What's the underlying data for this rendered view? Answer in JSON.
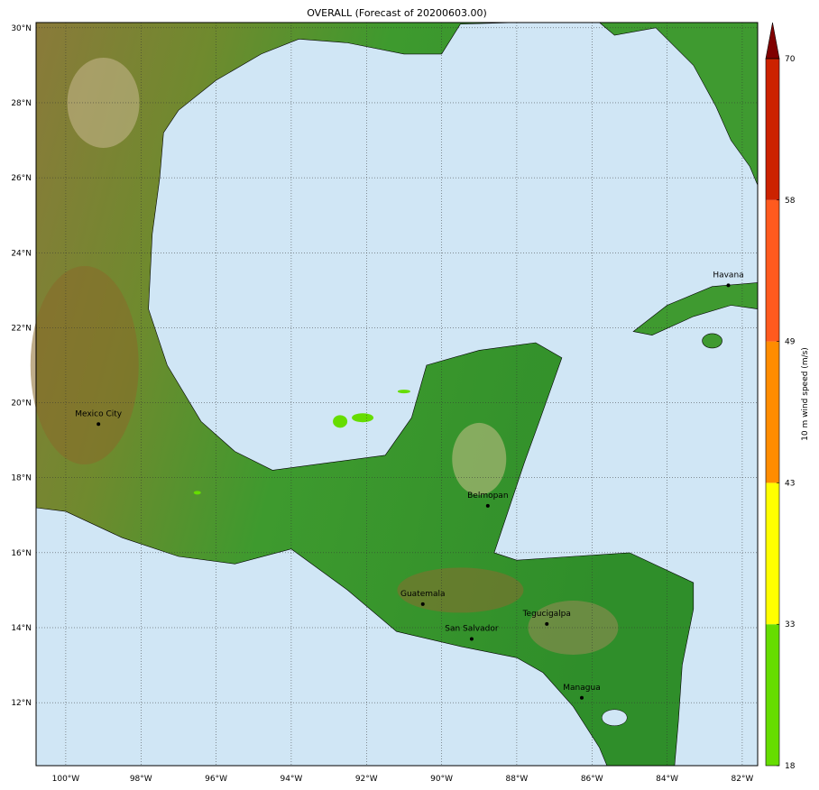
{
  "title": "OVERALL (Forecast of 20200603.00)",
  "map": {
    "extent": {
      "lon": [
        -100.79,
        -81.59
      ],
      "lat": [
        10.32,
        30.14
      ]
    },
    "lon_ticks": [
      {
        "v": -100,
        "label": "100°W"
      },
      {
        "v": -98,
        "label": "98°W"
      },
      {
        "v": -96,
        "label": "96°W"
      },
      {
        "v": -94,
        "label": "94°W"
      },
      {
        "v": -92,
        "label": "92°W"
      },
      {
        "v": -90,
        "label": "90°W"
      },
      {
        "v": -88,
        "label": "88°W"
      },
      {
        "v": -86,
        "label": "86°W"
      },
      {
        "v": -84,
        "label": "84°W"
      },
      {
        "v": -82,
        "label": "82°W"
      }
    ],
    "lat_ticks": [
      {
        "v": 30,
        "label": "30°N"
      },
      {
        "v": 28,
        "label": "28°N"
      },
      {
        "v": 26,
        "label": "26°N"
      },
      {
        "v": 24,
        "label": "24°N"
      },
      {
        "v": 22,
        "label": "22°N"
      },
      {
        "v": 20,
        "label": "20°N"
      },
      {
        "v": 18,
        "label": "18°N"
      },
      {
        "v": 16,
        "label": "16°N"
      },
      {
        "v": 14,
        "label": "14°N"
      },
      {
        "v": 12,
        "label": "12°N"
      }
    ],
    "gridlines": true,
    "water_color": "#d0e6f5",
    "cities": [
      {
        "name": "Mexico City",
        "lon": -99.13,
        "lat": 19.43
      },
      {
        "name": "Havana",
        "lon": -82.37,
        "lat": 23.13
      },
      {
        "name": "Belmopan",
        "lon": -88.77,
        "lat": 17.25
      },
      {
        "name": "Guatemala",
        "lon": -90.5,
        "lat": 14.63
      },
      {
        "name": "San Salvador",
        "lon": -89.2,
        "lat": 13.7
      },
      {
        "name": "Tegucigalpa",
        "lon": -87.2,
        "lat": 14.1
      },
      {
        "name": "Managua",
        "lon": -86.27,
        "lat": 12.13
      }
    ]
  },
  "colorbar": {
    "label": "10 m wind speed (m/s)",
    "levels": [
      18,
      33,
      43,
      49,
      58,
      70
    ],
    "colors": [
      "#66dd00",
      "#ffff00",
      "#ff8c00",
      "#ff5a1e",
      "#cc2200"
    ],
    "extend_color": "#800000",
    "extend": "max"
  }
}
